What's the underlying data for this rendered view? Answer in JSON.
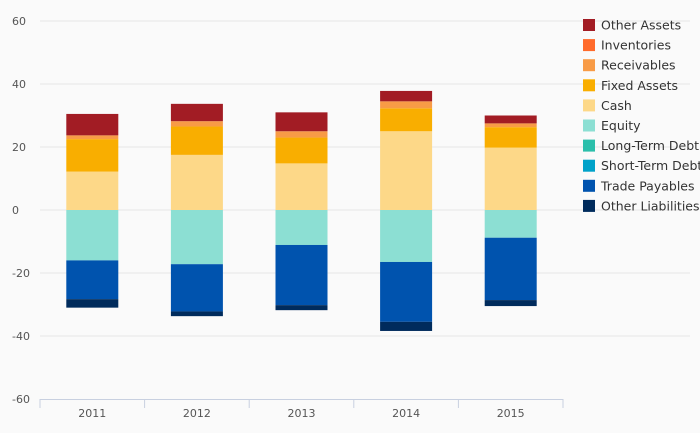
{
  "chart_data": {
    "type": "bar",
    "stacked": true,
    "categories": [
      "2011",
      "2012",
      "2013",
      "2014",
      "2015"
    ],
    "y_ticks": [
      "60",
      "40",
      "20",
      "0",
      "-20",
      "-40",
      "-60"
    ],
    "ylim": [
      -60,
      60
    ],
    "grid": true,
    "legend_position": "right",
    "series": [
      {
        "name": "Cash",
        "color": "#fdd888",
        "values": [
          12.2,
          17.5,
          14.8,
          25.0,
          19.8
        ]
      },
      {
        "name": "Fixed Assets",
        "color": "#f9ae00",
        "values": [
          10.3,
          9.0,
          8.2,
          7.3,
          6.5
        ]
      },
      {
        "name": "Receivables",
        "color": "#f89b46",
        "values": [
          1.2,
          1.7,
          2.0,
          2.2,
          1.2
        ]
      },
      {
        "name": "Inventories",
        "color": "#ff6a2b",
        "values": [
          0,
          0,
          0,
          0,
          0
        ]
      },
      {
        "name": "Other Assets",
        "color": "#a21c24",
        "values": [
          6.8,
          5.5,
          6.0,
          3.3,
          2.5
        ]
      },
      {
        "name": "Equity",
        "color": "#8cdfd3",
        "values": [
          -16.0,
          -17.2,
          -11.1,
          -16.5,
          -8.8
        ]
      },
      {
        "name": "Long-Term Debt",
        "color": "#2bbfab",
        "values": [
          0,
          0,
          0,
          0,
          0
        ]
      },
      {
        "name": "Short-Term Debt",
        "color": "#00a2c9",
        "values": [
          0,
          0,
          0,
          0,
          0
        ]
      },
      {
        "name": "Trade Payables",
        "color": "#0053ae",
        "values": [
          -12.3,
          -15.0,
          -19.1,
          -19.0,
          -19.8
        ]
      },
      {
        "name": "Other Liabilities",
        "color": "#002b5c",
        "values": [
          -2.7,
          -1.5,
          -1.6,
          -2.9,
          -1.9
        ]
      }
    ],
    "legend_order": [
      "Other Assets",
      "Inventories",
      "Receivables",
      "Fixed Assets",
      "Cash",
      "Equity",
      "Long-Term Debt",
      "Short-Term Debt",
      "Trade Payables",
      "Other Liabilities"
    ]
  }
}
